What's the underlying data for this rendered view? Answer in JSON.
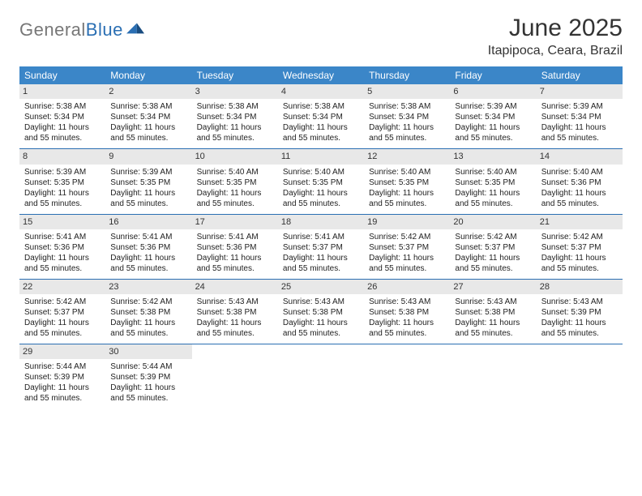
{
  "logo": {
    "textGray": "General",
    "textBlue": "Blue"
  },
  "title": "June 2025",
  "location": "Itapipoca, Ceara, Brazil",
  "colors": {
    "headerBlue": "#3b86c8",
    "borderBlue": "#2b6fb3",
    "dayNumBg": "#e8e8e8"
  },
  "daysOfWeek": [
    "Sunday",
    "Monday",
    "Tuesday",
    "Wednesday",
    "Thursday",
    "Friday",
    "Saturday"
  ],
  "days": [
    {
      "n": 1,
      "sunrise": "5:38 AM",
      "sunset": "5:34 PM",
      "daylight": "11 hours and 55 minutes."
    },
    {
      "n": 2,
      "sunrise": "5:38 AM",
      "sunset": "5:34 PM",
      "daylight": "11 hours and 55 minutes."
    },
    {
      "n": 3,
      "sunrise": "5:38 AM",
      "sunset": "5:34 PM",
      "daylight": "11 hours and 55 minutes."
    },
    {
      "n": 4,
      "sunrise": "5:38 AM",
      "sunset": "5:34 PM",
      "daylight": "11 hours and 55 minutes."
    },
    {
      "n": 5,
      "sunrise": "5:38 AM",
      "sunset": "5:34 PM",
      "daylight": "11 hours and 55 minutes."
    },
    {
      "n": 6,
      "sunrise": "5:39 AM",
      "sunset": "5:34 PM",
      "daylight": "11 hours and 55 minutes."
    },
    {
      "n": 7,
      "sunrise": "5:39 AM",
      "sunset": "5:34 PM",
      "daylight": "11 hours and 55 minutes."
    },
    {
      "n": 8,
      "sunrise": "5:39 AM",
      "sunset": "5:35 PM",
      "daylight": "11 hours and 55 minutes."
    },
    {
      "n": 9,
      "sunrise": "5:39 AM",
      "sunset": "5:35 PM",
      "daylight": "11 hours and 55 minutes."
    },
    {
      "n": 10,
      "sunrise": "5:40 AM",
      "sunset": "5:35 PM",
      "daylight": "11 hours and 55 minutes."
    },
    {
      "n": 11,
      "sunrise": "5:40 AM",
      "sunset": "5:35 PM",
      "daylight": "11 hours and 55 minutes."
    },
    {
      "n": 12,
      "sunrise": "5:40 AM",
      "sunset": "5:35 PM",
      "daylight": "11 hours and 55 minutes."
    },
    {
      "n": 13,
      "sunrise": "5:40 AM",
      "sunset": "5:35 PM",
      "daylight": "11 hours and 55 minutes."
    },
    {
      "n": 14,
      "sunrise": "5:40 AM",
      "sunset": "5:36 PM",
      "daylight": "11 hours and 55 minutes."
    },
    {
      "n": 15,
      "sunrise": "5:41 AM",
      "sunset": "5:36 PM",
      "daylight": "11 hours and 55 minutes."
    },
    {
      "n": 16,
      "sunrise": "5:41 AM",
      "sunset": "5:36 PM",
      "daylight": "11 hours and 55 minutes."
    },
    {
      "n": 17,
      "sunrise": "5:41 AM",
      "sunset": "5:36 PM",
      "daylight": "11 hours and 55 minutes."
    },
    {
      "n": 18,
      "sunrise": "5:41 AM",
      "sunset": "5:37 PM",
      "daylight": "11 hours and 55 minutes."
    },
    {
      "n": 19,
      "sunrise": "5:42 AM",
      "sunset": "5:37 PM",
      "daylight": "11 hours and 55 minutes."
    },
    {
      "n": 20,
      "sunrise": "5:42 AM",
      "sunset": "5:37 PM",
      "daylight": "11 hours and 55 minutes."
    },
    {
      "n": 21,
      "sunrise": "5:42 AM",
      "sunset": "5:37 PM",
      "daylight": "11 hours and 55 minutes."
    },
    {
      "n": 22,
      "sunrise": "5:42 AM",
      "sunset": "5:37 PM",
      "daylight": "11 hours and 55 minutes."
    },
    {
      "n": 23,
      "sunrise": "5:42 AM",
      "sunset": "5:38 PM",
      "daylight": "11 hours and 55 minutes."
    },
    {
      "n": 24,
      "sunrise": "5:43 AM",
      "sunset": "5:38 PM",
      "daylight": "11 hours and 55 minutes."
    },
    {
      "n": 25,
      "sunrise": "5:43 AM",
      "sunset": "5:38 PM",
      "daylight": "11 hours and 55 minutes."
    },
    {
      "n": 26,
      "sunrise": "5:43 AM",
      "sunset": "5:38 PM",
      "daylight": "11 hours and 55 minutes."
    },
    {
      "n": 27,
      "sunrise": "5:43 AM",
      "sunset": "5:38 PM",
      "daylight": "11 hours and 55 minutes."
    },
    {
      "n": 28,
      "sunrise": "5:43 AM",
      "sunset": "5:39 PM",
      "daylight": "11 hours and 55 minutes."
    },
    {
      "n": 29,
      "sunrise": "5:44 AM",
      "sunset": "5:39 PM",
      "daylight": "11 hours and 55 minutes."
    },
    {
      "n": 30,
      "sunrise": "5:44 AM",
      "sunset": "5:39 PM",
      "daylight": "11 hours and 55 minutes."
    }
  ],
  "labels": {
    "sunrise": "Sunrise:",
    "sunset": "Sunset:",
    "daylight": "Daylight:"
  },
  "startWeekday": 0
}
